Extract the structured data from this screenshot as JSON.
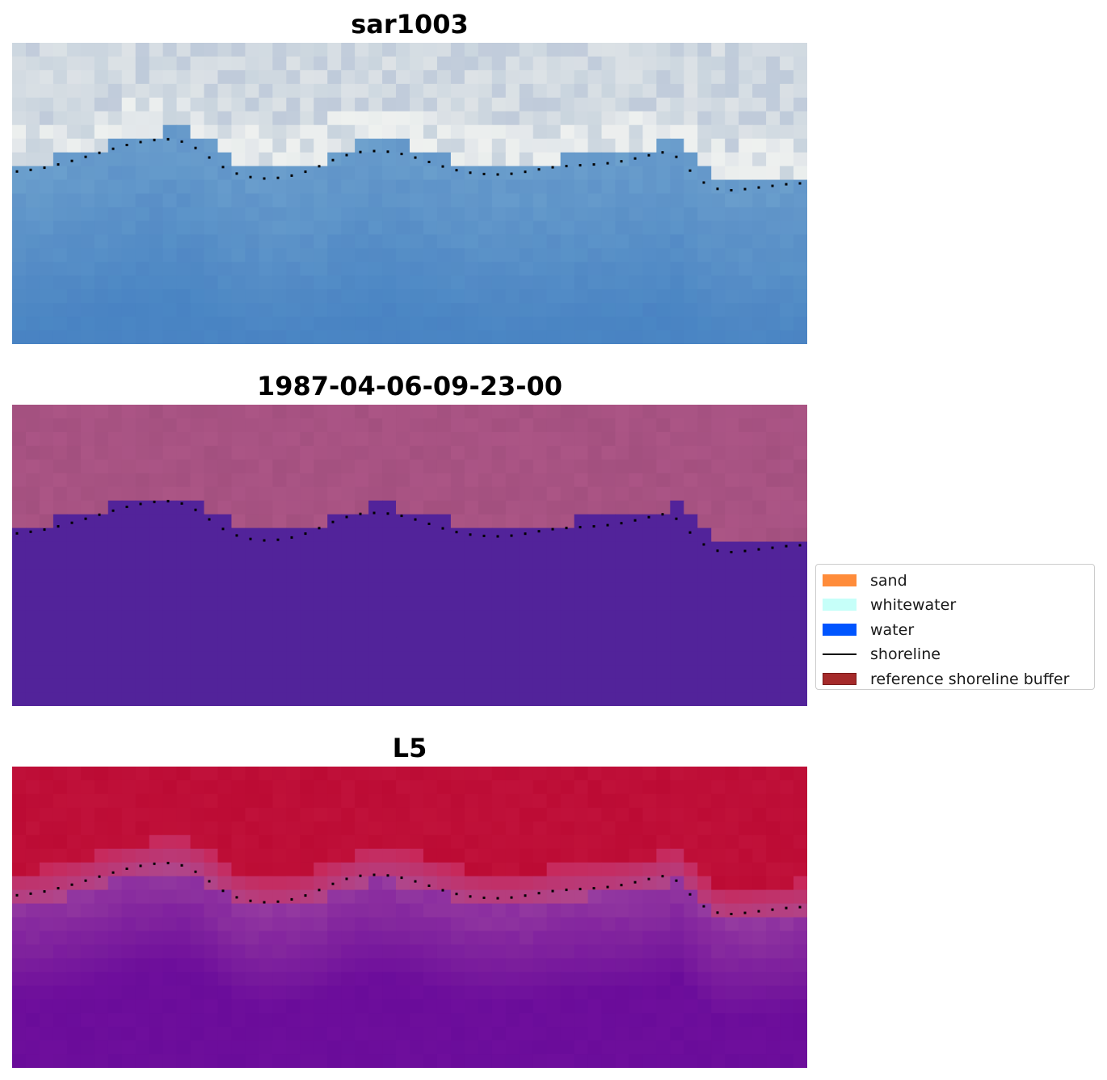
{
  "panels": [
    {
      "title": "sar1003",
      "kind": "rgb"
    },
    {
      "title": "1987-04-06-09-23-00",
      "kind": "classified"
    },
    {
      "title": "L5",
      "kind": "index"
    }
  ],
  "grid": {
    "cols": 58,
    "rows": 22
  },
  "shoreline_profile": [
    160,
    158,
    156,
    152,
    148,
    143,
    138,
    133,
    128,
    124,
    121,
    119,
    120,
    126,
    137,
    150,
    160,
    165,
    168,
    168,
    166,
    162,
    156,
    148,
    141,
    136,
    134,
    134,
    136,
    140,
    145,
    151,
    156,
    160,
    162,
    163,
    163,
    161,
    158,
    155,
    153,
    152,
    151,
    150,
    148,
    145,
    141,
    137,
    134,
    150,
    168,
    179,
    183,
    182,
    180,
    178,
    176,
    174
  ],
  "legend": {
    "items": [
      {
        "label": "sand",
        "color": "#ff8c3a",
        "type": "patch"
      },
      {
        "label": "whitewater",
        "color": "#c6fff9",
        "type": "patch"
      },
      {
        "label": "water",
        "color": "#0055ff",
        "type": "patch"
      },
      {
        "label": "shoreline",
        "color": "#000000",
        "type": "line"
      },
      {
        "label": "reference shoreline buffer",
        "color": "#a52a2a",
        "type": "patch"
      }
    ]
  },
  "colors": {
    "water_rgb": "#4a86c4",
    "land_rgb": "#c9d4de",
    "classified_land": "#a3507f",
    "classified_water": "#52239a",
    "index_land": "#bc0b34",
    "index_water": "#6a0c9a"
  }
}
